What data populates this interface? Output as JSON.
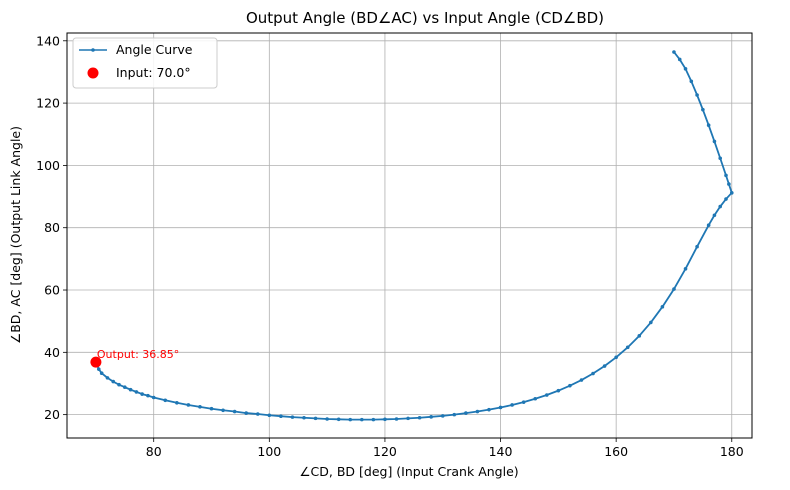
{
  "chart_data": {
    "type": "line",
    "title": "Output Angle (BD∠AC) vs Input Angle (CD∠BD)",
    "xlabel": "∠CD, BD [deg] (Input Crank Angle)",
    "ylabel": "∠BD, AC [deg] (Output Link Angle)",
    "xlim": [
      65,
      183.5
    ],
    "ylim": [
      12.5,
      142.5
    ],
    "xticks": [
      80,
      100,
      120,
      140,
      160,
      180
    ],
    "yticks": [
      20,
      40,
      60,
      80,
      100,
      120,
      140
    ],
    "grid": true,
    "legend_position": "upper-left",
    "series": [
      {
        "name": "Angle Curve",
        "color": "#1f77b4",
        "marker": "dot",
        "points": [
          [
            70,
            36.85
          ],
          [
            70.5,
            34.6
          ],
          [
            71,
            33.3
          ],
          [
            72,
            31.8
          ],
          [
            73,
            30.6
          ],
          [
            74,
            29.6
          ],
          [
            75,
            28.8
          ],
          [
            76,
            28.0
          ],
          [
            77,
            27.3
          ],
          [
            78,
            26.6
          ],
          [
            79,
            26.1
          ],
          [
            80,
            25.5
          ],
          [
            82,
            24.6
          ],
          [
            84,
            23.8
          ],
          [
            86,
            23.1
          ],
          [
            88,
            22.5
          ],
          [
            90,
            21.9
          ],
          [
            92,
            21.4
          ],
          [
            94,
            21.0
          ],
          [
            96,
            20.5
          ],
          [
            98,
            20.2
          ],
          [
            100,
            19.8
          ],
          [
            102,
            19.5
          ],
          [
            104,
            19.2
          ],
          [
            106,
            19.0
          ],
          [
            108,
            18.8
          ],
          [
            110,
            18.6
          ],
          [
            112,
            18.5
          ],
          [
            114,
            18.4
          ],
          [
            116,
            18.4
          ],
          [
            118,
            18.4
          ],
          [
            120,
            18.5
          ],
          [
            122,
            18.6
          ],
          [
            124,
            18.8
          ],
          [
            126,
            19.0
          ],
          [
            128,
            19.3
          ],
          [
            130,
            19.6
          ],
          [
            132,
            20.0
          ],
          [
            134,
            20.5
          ],
          [
            136,
            21.0
          ],
          [
            138,
            21.6
          ],
          [
            140,
            22.3
          ],
          [
            142,
            23.1
          ],
          [
            144,
            24.0
          ],
          [
            146,
            25.1
          ],
          [
            148,
            26.3
          ],
          [
            150,
            27.7
          ],
          [
            152,
            29.3
          ],
          [
            154,
            31.1
          ],
          [
            156,
            33.2
          ],
          [
            158,
            35.6
          ],
          [
            160,
            38.4
          ],
          [
            162,
            41.6
          ],
          [
            164,
            45.3
          ],
          [
            166,
            49.6
          ],
          [
            168,
            54.6
          ],
          [
            170,
            60.3
          ],
          [
            172,
            66.8
          ],
          [
            174,
            73.9
          ],
          [
            176,
            80.8
          ],
          [
            177,
            84.0
          ],
          [
            178,
            86.8
          ],
          [
            179,
            89.2
          ],
          [
            180,
            91.2
          ],
          [
            179.5,
            94.0
          ],
          [
            179,
            96.8
          ],
          [
            178,
            102.3
          ],
          [
            177,
            107.7
          ],
          [
            176,
            112.9
          ],
          [
            175,
            117.9
          ],
          [
            174,
            122.6
          ],
          [
            173,
            127.0
          ],
          [
            172,
            131.0
          ],
          [
            171,
            134.0
          ],
          [
            170,
            136.4
          ]
        ]
      }
    ],
    "highlight": {
      "name": "Input: 70.0°",
      "color": "#ff0000",
      "x": 70.0,
      "y": 36.85,
      "annotation": "Output: 36.85°"
    }
  }
}
